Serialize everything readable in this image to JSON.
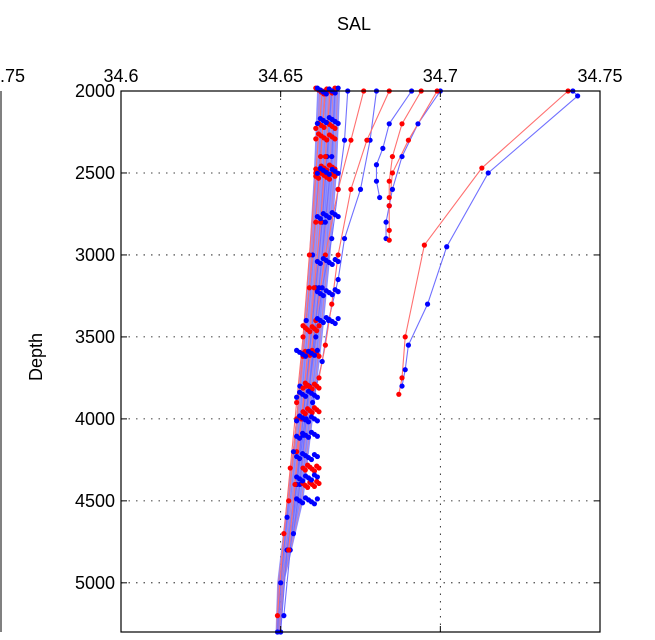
{
  "chart_data": {
    "type": "line",
    "title": "SAL",
    "xlabel": "",
    "ylabel": "Depth",
    "xlim": [
      34.6,
      34.75
    ],
    "ylim": [
      2000,
      5300
    ],
    "y_reversed": true,
    "x_axis_position": "top",
    "grid": true,
    "grid_style": "dotted",
    "x_ticks": [
      34.6,
      34.65,
      34.7,
      34.75
    ],
    "x_tick_labels": [
      "34.6",
      "34.65",
      "34.7",
      "34.75"
    ],
    "y_ticks": [
      2000,
      2500,
      3000,
      3500,
      4000,
      4500,
      5000
    ],
    "y_tick_labels": [
      "2000",
      "2500",
      "3000",
      "3500",
      "4000",
      "4500",
      "5000"
    ],
    "left_panel_fragments": {
      "top_tick_label": ".75"
    },
    "colors": {
      "series_a": "#ff0000",
      "series_b": "#0000ff",
      "line_a": "#ff7070",
      "line_b": "#7070ff",
      "band": "#8080ff"
    },
    "band": {
      "left": [
        [
          34.6615,
          2000
        ],
        [
          34.6605,
          2500
        ],
        [
          34.659,
          3000
        ],
        [
          34.657,
          3500
        ],
        [
          34.655,
          4000
        ],
        [
          34.652,
          4500
        ],
        [
          34.649,
          5000
        ],
        [
          34.6485,
          5300
        ]
      ],
      "right": [
        [
          34.6685,
          2000
        ],
        [
          34.6675,
          2500
        ],
        [
          34.6655,
          3000
        ],
        [
          34.663,
          3500
        ],
        [
          34.66,
          4000
        ],
        [
          34.657,
          4500
        ],
        [
          34.651,
          5000
        ],
        [
          34.65,
          5300
        ]
      ]
    },
    "series": [
      {
        "color": "series_b",
        "x": [
          34.7415,
          34.743,
          34.715,
          34.702,
          34.696,
          34.69,
          34.689,
          34.688
        ],
        "y": [
          2000,
          2030,
          2500,
          2950,
          3300,
          3550,
          3700,
          3800
        ]
      },
      {
        "color": "series_a",
        "x": [
          34.74,
          34.713,
          34.695,
          34.689,
          34.688,
          34.687
        ],
        "y": [
          2000,
          2470,
          2940,
          3500,
          3750,
          3850
        ]
      },
      {
        "color": "series_b",
        "x": [
          34.7,
          34.693,
          34.688,
          34.685,
          34.684,
          34.683,
          34.683
        ],
        "y": [
          2000,
          2200,
          2400,
          2600,
          2700,
          2800,
          2900
        ]
      },
      {
        "color": "series_a",
        "x": [
          34.699,
          34.69,
          34.685,
          34.684,
          34.684,
          34.684
        ],
        "y": [
          2000,
          2300,
          2500,
          2700,
          2850,
          2910
        ]
      },
      {
        "color": "series_b",
        "x": [
          34.691,
          34.684,
          34.682,
          34.68,
          34.68,
          34.681
        ],
        "y": [
          2000,
          2200,
          2350,
          2450,
          2550,
          2650
        ]
      },
      {
        "color": "series_a",
        "x": [
          34.694,
          34.688,
          34.685,
          34.684,
          34.684
        ],
        "y": [
          2000,
          2200,
          2400,
          2550,
          2650
        ]
      },
      {
        "color": "series_b",
        "x": [
          34.68,
          34.678,
          34.675,
          34.67,
          34.668,
          34.665,
          34.663,
          34.66
        ],
        "y": [
          2000,
          2300,
          2600,
          2900,
          3150,
          3400,
          3650,
          3900
        ]
      },
      {
        "color": "series_a",
        "x": [
          34.684,
          34.677,
          34.672,
          34.668,
          34.666,
          34.664,
          34.662
        ],
        "y": [
          2000,
          2300,
          2600,
          3000,
          3300,
          3550,
          3750
        ]
      },
      {
        "color": "series_b",
        "x": [
          34.671,
          34.67,
          34.668,
          34.666,
          34.663,
          34.661,
          34.659,
          34.657,
          34.655,
          34.652,
          34.65
        ],
        "y": [
          2000,
          2300,
          2600,
          2900,
          3200,
          3500,
          3800,
          4100,
          4400,
          4800,
          5300
        ]
      },
      {
        "color": "series_a",
        "x": [
          34.676,
          34.672,
          34.668,
          34.664,
          34.661,
          34.658,
          34.655
        ],
        "y": [
          2000,
          2300,
          2600,
          3000,
          3400,
          3800,
          4200
        ]
      },
      {
        "color": "series_b",
        "x": [
          34.664,
          34.662,
          34.66,
          34.658,
          34.656,
          34.654,
          34.652,
          34.65,
          34.649
        ],
        "y": [
          2000,
          2500,
          3000,
          3400,
          3800,
          4200,
          4600,
          5000,
          5300
        ]
      },
      {
        "color": "series_a",
        "x": [
          34.663,
          34.661,
          34.659,
          34.657,
          34.655,
          34.653,
          34.651,
          34.649
        ],
        "y": [
          2000,
          2500,
          3000,
          3500,
          3900,
          4300,
          4700,
          5200
        ]
      },
      {
        "color": "series_b",
        "x": [
          34.666,
          34.6645,
          34.663,
          34.661,
          34.659,
          34.657,
          34.655,
          34.653,
          34.651
        ],
        "y": [
          2000,
          2400,
          2800,
          3200,
          3600,
          4000,
          4400,
          4800,
          5200
        ]
      },
      {
        "color": "series_a",
        "x": [
          34.6655,
          34.664,
          34.6625,
          34.6605,
          34.6585,
          34.6565,
          34.6545,
          34.6525
        ],
        "y": [
          2000,
          2400,
          2800,
          3200,
          3600,
          4000,
          4400,
          4800
        ]
      },
      {
        "color": "series_b",
        "x": [
          34.667,
          34.666,
          34.664,
          34.662,
          34.66,
          34.658,
          34.656,
          34.654
        ],
        "y": [
          2000,
          2400,
          2800,
          3200,
          3600,
          4000,
          4400,
          4700
        ]
      },
      {
        "color": "series_a",
        "x": [
          34.664,
          34.6625,
          34.661,
          34.659,
          34.657,
          34.655,
          34.6525
        ],
        "y": [
          2000,
          2400,
          2800,
          3200,
          3600,
          4000,
          4500
        ]
      }
    ],
    "point_clusters": [
      {
        "color": "series_a",
        "x_range": [
          34.661,
          34.667
        ],
        "y": [
          2000,
          2210,
          2280,
          2470,
          2520
        ]
      },
      {
        "color": "series_b",
        "x_range": [
          34.6615,
          34.668
        ],
        "y": [
          2000,
          2180,
          2490,
          2760,
          3040,
          3230,
          3400
        ]
      },
      {
        "color": "series_a",
        "x_range": [
          34.657,
          34.662
        ],
        "y": [
          3450,
          3600,
          3800,
          3950,
          4300,
          4400
        ]
      },
      {
        "color": "series_b",
        "x_range": [
          34.655,
          34.6615
        ],
        "y": [
          3600,
          3850,
          4000,
          4100,
          4230,
          4360,
          4500
        ]
      }
    ]
  }
}
